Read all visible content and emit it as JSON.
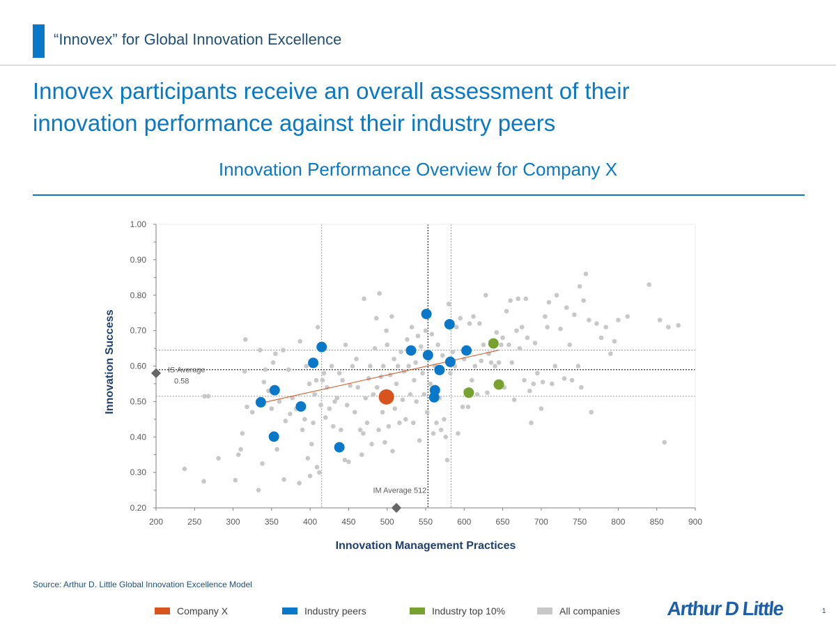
{
  "header": {
    "title": "“Innovex” for Global Innovation Excellence"
  },
  "headline": "Innovex participants receive an overall assessment of their innovation performance against their industry peers",
  "subtitle": "Innovation Performance Overview for Company X",
  "source": "Source: Arthur D. Little Global Innovation Excellence Model",
  "logo": "Arthur D Little",
  "page_number": "1",
  "colors": {
    "brand_blue": "#0a78c8",
    "company_x": "#d9531e",
    "industry_peers": "#0a78c8",
    "industry_top": "#78a22f",
    "all_companies": "#c8c8c8"
  },
  "legend": [
    {
      "label": "Company X",
      "color": "#d9531e"
    },
    {
      "label": "Industry peers",
      "color": "#0a78c8"
    },
    {
      "label": "Industry top 10%",
      "color": "#78a22f"
    },
    {
      "label": "All companies",
      "color": "#c8c8c8"
    }
  ],
  "chart_data": {
    "type": "scatter",
    "xlabel": "Innovation Management Practices",
    "ylabel": "Innovation Success",
    "xlim": [
      200,
      900
    ],
    "ylim": [
      0.2,
      1.0
    ],
    "xticks": [
      "200",
      "250",
      "300",
      "350",
      "400",
      "450",
      "500",
      "550",
      "600",
      "650",
      "700",
      "750",
      "800",
      "850",
      "900"
    ],
    "yticks": [
      "0.20",
      "0.30",
      "0.40",
      "0.50",
      "0.60",
      "0.70",
      "0.80",
      "0.90",
      "1.00"
    ],
    "grid": false,
    "averages": {
      "is_average": {
        "label_line1": "IS Average",
        "label_line2": "0.58",
        "value": 0.58
      },
      "im_average": {
        "label": "IM Average 512",
        "value": 512
      }
    },
    "reference_lines": {
      "x": [
        415,
        553,
        583
      ],
      "y": [
        0.515,
        0.59,
        0.645
      ]
    },
    "trend_line": {
      "x": [
        335,
        645
      ],
      "y": [
        0.495,
        0.645
      ]
    },
    "series": [
      {
        "name": "Company X",
        "color": "#d9531e",
        "points": [
          [
            499,
            0.513
          ]
        ]
      },
      {
        "name": "Industry peers",
        "color": "#0a78c8",
        "points": [
          [
            336,
            0.498
          ],
          [
            354,
            0.532
          ],
          [
            353,
            0.401
          ],
          [
            388,
            0.486
          ],
          [
            404,
            0.609
          ],
          [
            415,
            0.654
          ],
          [
            438,
            0.371
          ],
          [
            531,
            0.644
          ],
          [
            551,
            0.747
          ],
          [
            553,
            0.631
          ],
          [
            561,
            0.512
          ],
          [
            562,
            0.532
          ],
          [
            568,
            0.589
          ],
          [
            581,
            0.718
          ],
          [
            582,
            0.612
          ],
          [
            603,
            0.644
          ]
        ]
      },
      {
        "name": "Industry top 10%",
        "color": "#78a22f",
        "points": [
          [
            606,
            0.525
          ],
          [
            638,
            0.664
          ],
          [
            645,
            0.548
          ]
        ]
      },
      {
        "name": "All companies",
        "color": "#c8c8c8",
        "points": [
          [
            237,
            0.31
          ],
          [
            262,
            0.275
          ],
          [
            263,
            0.515
          ],
          [
            268,
            0.515
          ],
          [
            281,
            0.34
          ],
          [
            303,
            0.278
          ],
          [
            307,
            0.35
          ],
          [
            310,
            0.365
          ],
          [
            312,
            0.41
          ],
          [
            315,
            0.585
          ],
          [
            316,
            0.675
          ],
          [
            318,
            0.485
          ],
          [
            325,
            0.47
          ],
          [
            333,
            0.25
          ],
          [
            335,
            0.645
          ],
          [
            338,
            0.325
          ],
          [
            340,
            0.555
          ],
          [
            342,
            0.59
          ],
          [
            346,
            0.53
          ],
          [
            350,
            0.48
          ],
          [
            352,
            0.61
          ],
          [
            355,
            0.635
          ],
          [
            357,
            0.365
          ],
          [
            360,
            0.5
          ],
          [
            365,
            0.645
          ],
          [
            366,
            0.28
          ],
          [
            368,
            0.445
          ],
          [
            372,
            0.59
          ],
          [
            374,
            0.465
          ],
          [
            377,
            0.51
          ],
          [
            382,
            0.48
          ],
          [
            386,
            0.27
          ],
          [
            387,
            0.67
          ],
          [
            390,
            0.42
          ],
          [
            393,
            0.45
          ],
          [
            395,
            0.6
          ],
          [
            397,
            0.34
          ],
          [
            399,
            0.55
          ],
          [
            400,
            0.29
          ],
          [
            402,
            0.38
          ],
          [
            404,
            0.44
          ],
          [
            406,
            0.52
          ],
          [
            408,
            0.56
          ],
          [
            409,
            0.315
          ],
          [
            410,
            0.71
          ],
          [
            412,
            0.3
          ],
          [
            414,
            0.49
          ],
          [
            416,
            0.56
          ],
          [
            418,
            0.58
          ],
          [
            420,
            0.455
          ],
          [
            422,
            0.54
          ],
          [
            425,
            0.48
          ],
          [
            428,
            0.6
          ],
          [
            430,
            0.43
          ],
          [
            432,
            0.5
          ],
          [
            435,
            0.51
          ],
          [
            438,
            0.58
          ],
          [
            440,
            0.42
          ],
          [
            442,
            0.56
          ],
          [
            445,
            0.335
          ],
          [
            446,
            0.66
          ],
          [
            448,
            0.49
          ],
          [
            450,
            0.33
          ],
          [
            452,
            0.545
          ],
          [
            455,
            0.6
          ],
          [
            458,
            0.47
          ],
          [
            460,
            0.62
          ],
          [
            462,
            0.54
          ],
          [
            465,
            0.42
          ],
          [
            467,
            0.35
          ],
          [
            469,
            0.41
          ],
          [
            470,
            0.79
          ],
          [
            472,
            0.51
          ],
          [
            474,
            0.44
          ],
          [
            476,
            0.565
          ],
          [
            478,
            0.6
          ],
          [
            480,
            0.38
          ],
          [
            482,
            0.52
          ],
          [
            484,
            0.65
          ],
          [
            486,
            0.735
          ],
          [
            487,
            0.54
          ],
          [
            489,
            0.42
          ],
          [
            490,
            0.805
          ],
          [
            492,
            0.57
          ],
          [
            494,
            0.47
          ],
          [
            495,
            0.6
          ],
          [
            497,
            0.385
          ],
          [
            499,
            0.7
          ],
          [
            500,
            0.66
          ],
          [
            502,
            0.43
          ],
          [
            504,
            0.575
          ],
          [
            506,
            0.74
          ],
          [
            507,
            0.36
          ],
          [
            509,
            0.62
          ],
          [
            510,
            0.48
          ],
          [
            512,
            0.55
          ],
          [
            514,
            0.6
          ],
          [
            516,
            0.44
          ],
          [
            518,
            0.64
          ],
          [
            520,
            0.505
          ],
          [
            522,
            0.585
          ],
          [
            524,
            0.45
          ],
          [
            526,
            0.675
          ],
          [
            528,
            0.6
          ],
          [
            530,
            0.52
          ],
          [
            532,
            0.71
          ],
          [
            534,
            0.44
          ],
          [
            535,
            0.56
          ],
          [
            537,
            0.61
          ],
          [
            538,
            0.5
          ],
          [
            540,
            0.685
          ],
          [
            542,
            0.39
          ],
          [
            544,
            0.655
          ],
          [
            546,
            0.58
          ],
          [
            548,
            0.52
          ],
          [
            550,
            0.7
          ],
          [
            552,
            0.47
          ],
          [
            554,
            0.62
          ],
          [
            556,
            0.55
          ],
          [
            558,
            0.69
          ],
          [
            560,
            0.41
          ],
          [
            562,
            0.6
          ],
          [
            564,
            0.44
          ],
          [
            566,
            0.66
          ],
          [
            568,
            0.51
          ],
          [
            570,
            0.42
          ],
          [
            572,
            0.63
          ],
          [
            574,
            0.45
          ],
          [
            576,
            0.4
          ],
          [
            578,
            0.335
          ],
          [
            580,
            0.775
          ],
          [
            582,
            0.58
          ],
          [
            585,
            0.64
          ],
          [
            588,
            0.6
          ],
          [
            590,
            0.71
          ],
          [
            592,
            0.41
          ],
          [
            595,
            0.735
          ],
          [
            598,
            0.485
          ],
          [
            600,
            0.62
          ],
          [
            602,
            0.53
          ],
          [
            605,
            0.485
          ],
          [
            607,
            0.72
          ],
          [
            610,
            0.56
          ],
          [
            612,
            0.74
          ],
          [
            614,
            0.6
          ],
          [
            617,
            0.52
          ],
          [
            620,
            0.72
          ],
          [
            622,
            0.615
          ],
          [
            625,
            0.66
          ],
          [
            628,
            0.8
          ],
          [
            630,
            0.525
          ],
          [
            632,
            0.635
          ],
          [
            635,
            0.61
          ],
          [
            640,
            0.6
          ],
          [
            642,
            0.695
          ],
          [
            645,
            0.61
          ],
          [
            648,
            0.66
          ],
          [
            650,
            0.68
          ],
          [
            652,
            0.54
          ],
          [
            655,
            0.755
          ],
          [
            658,
            0.66
          ],
          [
            660,
            0.785
          ],
          [
            662,
            0.61
          ],
          [
            665,
            0.505
          ],
          [
            668,
            0.7
          ],
          [
            670,
            0.79
          ],
          [
            672,
            0.65
          ],
          [
            675,
            0.71
          ],
          [
            678,
            0.56
          ],
          [
            680,
            0.79
          ],
          [
            682,
            0.68
          ],
          [
            685,
            0.53
          ],
          [
            687,
            0.44
          ],
          [
            690,
            0.55
          ],
          [
            692,
            0.665
          ],
          [
            695,
            0.58
          ],
          [
            700,
            0.48
          ],
          [
            702,
            0.555
          ],
          [
            705,
            0.74
          ],
          [
            708,
            0.71
          ],
          [
            710,
            0.78
          ],
          [
            714,
            0.55
          ],
          [
            718,
            0.6
          ],
          [
            720,
            0.8
          ],
          [
            725,
            0.705
          ],
          [
            730,
            0.565
          ],
          [
            733,
            0.765
          ],
          [
            737,
            0.66
          ],
          [
            740,
            0.56
          ],
          [
            743,
            0.745
          ],
          [
            748,
            0.6
          ],
          [
            750,
            0.825
          ],
          [
            752,
            0.54
          ],
          [
            755,
            0.785
          ],
          [
            758,
            0.86
          ],
          [
            762,
            0.73
          ],
          [
            765,
            0.47
          ],
          [
            772,
            0.72
          ],
          [
            778,
            0.68
          ],
          [
            784,
            0.71
          ],
          [
            790,
            0.635
          ],
          [
            795,
            0.67
          ],
          [
            800,
            0.73
          ],
          [
            812,
            0.74
          ],
          [
            840,
            0.83
          ],
          [
            854,
            0.73
          ],
          [
            860,
            0.385
          ],
          [
            865,
            0.71
          ],
          [
            878,
            0.715
          ]
        ]
      }
    ]
  }
}
